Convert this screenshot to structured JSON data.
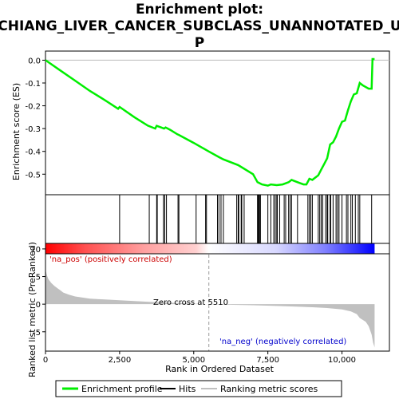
{
  "chart_data": {
    "type": "line",
    "title_line1": "Enrichment plot:",
    "title_line2": "CHIANG_LIVER_CANCER_SUBCLASS_UNANNOTATED_U",
    "title_line3": "P",
    "es_panel": {
      "ylabel": "Enrichment score (ES)",
      "ylim": [
        -0.59,
        0.04
      ],
      "yticks": [
        0.0,
        -0.1,
        -0.2,
        -0.3,
        -0.4,
        -0.5
      ],
      "ytick_labels": [
        "0.0",
        "-0.1",
        "-0.2",
        "-0.3",
        "-0.4",
        "-0.5"
      ],
      "line_color": "#00ee00",
      "curve": [
        [
          0,
          0.0
        ],
        [
          500,
          -0.045
        ],
        [
          1000,
          -0.09
        ],
        [
          1500,
          -0.135
        ],
        [
          2000,
          -0.175
        ],
        [
          2450,
          -0.213
        ],
        [
          2500,
          -0.205
        ],
        [
          3000,
          -0.25
        ],
        [
          3450,
          -0.287
        ],
        [
          3700,
          -0.3
        ],
        [
          3750,
          -0.288
        ],
        [
          3900,
          -0.295
        ],
        [
          4000,
          -0.3
        ],
        [
          4050,
          -0.295
        ],
        [
          4200,
          -0.305
        ],
        [
          4450,
          -0.325
        ],
        [
          4500,
          -0.328
        ],
        [
          5000,
          -0.363
        ],
        [
          5500,
          -0.4
        ],
        [
          5850,
          -0.425
        ],
        [
          6000,
          -0.435
        ],
        [
          6500,
          -0.46
        ],
        [
          7000,
          -0.5
        ],
        [
          7150,
          -0.535
        ],
        [
          7200,
          -0.538
        ],
        [
          7300,
          -0.545
        ],
        [
          7500,
          -0.55
        ],
        [
          7600,
          -0.545
        ],
        [
          7800,
          -0.548
        ],
        [
          8000,
          -0.545
        ],
        [
          8200,
          -0.535
        ],
        [
          8300,
          -0.525
        ],
        [
          8500,
          -0.535
        ],
        [
          8700,
          -0.545
        ],
        [
          8800,
          -0.545
        ],
        [
          8900,
          -0.52
        ],
        [
          9000,
          -0.525
        ],
        [
          9200,
          -0.505
        ],
        [
          9300,
          -0.48
        ],
        [
          9400,
          -0.455
        ],
        [
          9500,
          -0.43
        ],
        [
          9600,
          -0.37
        ],
        [
          9700,
          -0.36
        ],
        [
          9800,
          -0.335
        ],
        [
          9900,
          -0.3
        ],
        [
          10000,
          -0.27
        ],
        [
          10100,
          -0.265
        ],
        [
          10200,
          -0.22
        ],
        [
          10300,
          -0.18
        ],
        [
          10400,
          -0.15
        ],
        [
          10500,
          -0.145
        ],
        [
          10600,
          -0.1
        ],
        [
          10700,
          -0.11
        ],
        [
          10900,
          -0.125
        ],
        [
          11000,
          -0.125
        ],
        [
          11030,
          0.005
        ],
        [
          11100,
          0.005
        ]
      ]
    },
    "hits": [
      2500,
      3500,
      3750,
      3770,
      3980,
      4020,
      4080,
      4470,
      4500,
      5080,
      5400,
      5430,
      5800,
      5850,
      5920,
      6000,
      6450,
      6500,
      6520,
      6600,
      6620,
      6700,
      7150,
      7170,
      7200,
      7220,
      7250,
      7500,
      7600,
      7700,
      7750,
      7800,
      7820,
      7900,
      8050,
      8100,
      8200,
      8250,
      8300,
      8500,
      8850,
      8900,
      8950,
      9000,
      9200,
      9250,
      9300,
      9350,
      9450,
      9500,
      9520,
      9600,
      9620,
      9700,
      9800,
      9850,
      9900,
      10000,
      10150,
      10200,
      10300,
      10350,
      10450,
      10550,
      10600,
      11000
    ],
    "heatmap_colors": [
      "#ff0000",
      "#ffd0d0",
      "#ffffff",
      "#d8d8ff",
      "#0000ff"
    ],
    "metric_panel": {
      "ylabel": "Ranked list metric (PreRanked)",
      "ylim": [
        -8.5,
        11
      ],
      "yticks": [
        10,
        5,
        0,
        -5
      ],
      "ytick_labels": [
        "10",
        "5",
        "0",
        "-5"
      ],
      "fill_color": "#c0c0c0",
      "pos_label": "'na_pos' (positively correlated)",
      "neg_label": "'na_neg' (negatively correlated)",
      "zero_cross_label": "Zero cross at 5510",
      "zero_cross": 5510,
      "curve": [
        [
          0,
          6.2
        ],
        [
          50,
          5.2
        ],
        [
          100,
          4.5
        ],
        [
          200,
          3.8
        ],
        [
          300,
          3.3
        ],
        [
          400,
          2.9
        ],
        [
          500,
          2.5
        ],
        [
          600,
          2.1
        ],
        [
          800,
          1.7
        ],
        [
          1000,
          1.4
        ],
        [
          1500,
          1.0
        ],
        [
          2000,
          0.85
        ],
        [
          2500,
          0.7
        ],
        [
          3000,
          0.55
        ],
        [
          3500,
          0.42
        ],
        [
          4000,
          0.3
        ],
        [
          4500,
          0.2
        ],
        [
          5000,
          0.1
        ],
        [
          5510,
          0.0
        ],
        [
          6000,
          -0.08
        ],
        [
          7000,
          -0.2
        ],
        [
          8000,
          -0.35
        ],
        [
          9000,
          -0.55
        ],
        [
          9500,
          -0.7
        ],
        [
          10000,
          -0.95
        ],
        [
          10300,
          -1.3
        ],
        [
          10500,
          -1.8
        ],
        [
          10600,
          -2.5
        ],
        [
          10800,
          -3.2
        ],
        [
          10900,
          -4.0
        ],
        [
          11000,
          -5.5
        ],
        [
          11050,
          -7.0
        ],
        [
          11100,
          -7.8
        ]
      ]
    },
    "xaxis": {
      "label": "Rank in Ordered Dataset",
      "xlim": [
        0,
        11600
      ],
      "ticks": [
        0,
        2500,
        5000,
        7500,
        10000
      ],
      "tick_labels": [
        "0",
        "2,500",
        "5,000",
        "7,500",
        "10,000"
      ]
    },
    "legend": {
      "items": [
        {
          "label": "Enrichment profile",
          "color": "#00ee00"
        },
        {
          "label": "Hits",
          "color": "#000000"
        },
        {
          "label": "Ranking metric scores",
          "color": "#c0c0c0"
        }
      ]
    }
  }
}
